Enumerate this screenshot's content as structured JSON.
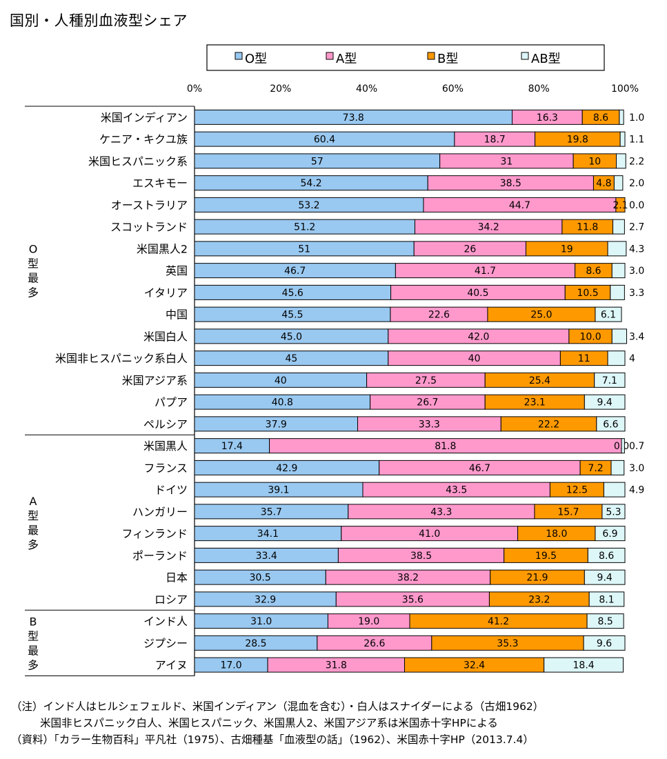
{
  "title": "国別・人種別血液型シェア",
  "chart_data": {
    "type": "bar",
    "orientation": "horizontal",
    "stacked": true,
    "xlim": [
      0,
      100
    ],
    "x_ticks": [
      "0%",
      "20%",
      "40%",
      "60%",
      "80%",
      "100%"
    ],
    "legend_position": "top",
    "series": [
      {
        "name": "O型",
        "color": "#99c8f0"
      },
      {
        "name": "A型",
        "color": "#ff99cc"
      },
      {
        "name": "B型",
        "color": "#ff9900"
      },
      {
        "name": "AB型",
        "color": "#ddf6f8"
      }
    ],
    "groups": [
      {
        "label": [
          "O",
          "型",
          "最",
          "多"
        ],
        "start": 0,
        "end": 14
      },
      {
        "label": [
          "A",
          "型",
          "最",
          "多"
        ],
        "start": 15,
        "end": 22
      },
      {
        "label": [
          "B",
          "型",
          "最",
          "多"
        ],
        "start": 23,
        "end": 25
      }
    ],
    "rows": [
      {
        "category": "米国インディアン",
        "values": [
          73.8,
          16.3,
          8.6,
          1.0
        ],
        "labels": [
          "73.8",
          "16.3",
          "8.6",
          "1.0"
        ],
        "outside": [
          3
        ]
      },
      {
        "category": "ケニア・キクユ族",
        "values": [
          60.4,
          18.7,
          19.8,
          1.1
        ],
        "labels": [
          "60.4",
          "18.7",
          "19.8",
          "1.1"
        ],
        "outside": [
          3
        ]
      },
      {
        "category": "米国ヒスパニック系",
        "values": [
          57,
          31,
          10,
          2.2
        ],
        "labels": [
          "57",
          "31",
          "10",
          "2.2"
        ],
        "outside": [
          3
        ]
      },
      {
        "category": "エスキモー",
        "values": [
          54.2,
          38.5,
          4.8,
          2.0
        ],
        "labels": [
          "54.2",
          "38.5",
          "4.8",
          "2.0"
        ],
        "outside": [
          3
        ]
      },
      {
        "category": "オーストラリア",
        "values": [
          53.2,
          44.7,
          2.1,
          0.0
        ],
        "labels": [
          "53.2",
          "44.7",
          "2.1",
          "0.0"
        ],
        "outside": [
          3
        ]
      },
      {
        "category": "スコットランド",
        "values": [
          51.2,
          34.2,
          11.8,
          2.7
        ],
        "labels": [
          "51.2",
          "34.2",
          "11.8",
          "2.7"
        ],
        "outside": [
          3
        ]
      },
      {
        "category": "米国黒人2",
        "values": [
          51,
          26,
          19,
          4.3
        ],
        "labels": [
          "51",
          "26",
          "19",
          "4.3"
        ],
        "outside": [
          3
        ]
      },
      {
        "category": "英国",
        "values": [
          46.7,
          41.7,
          8.6,
          3.0
        ],
        "labels": [
          "46.7",
          "41.7",
          "8.6",
          "3.0"
        ],
        "outside": [
          3
        ]
      },
      {
        "category": "イタリア",
        "values": [
          45.6,
          40.5,
          10.5,
          3.3
        ],
        "labels": [
          "45.6",
          "40.5",
          "10.5",
          "3.3"
        ],
        "outside": [
          3
        ]
      },
      {
        "category": "中国",
        "values": [
          45.5,
          22.6,
          25.0,
          6.1
        ],
        "labels": [
          "45.5",
          "22.6",
          "25.0",
          "6.1"
        ],
        "outside": []
      },
      {
        "category": "米国白人",
        "values": [
          45.0,
          42.0,
          10.0,
          3.4
        ],
        "labels": [
          "45.0",
          "42.0",
          "10.0",
          "3.4"
        ],
        "outside": [
          3
        ]
      },
      {
        "category": "米国非ヒスパニック系白人",
        "values": [
          45,
          40,
          11,
          4
        ],
        "labels": [
          "45",
          "40",
          "11",
          "4"
        ],
        "outside": [
          3
        ]
      },
      {
        "category": "米国アジア系",
        "values": [
          40,
          27.5,
          25.4,
          7.1
        ],
        "labels": [
          "40",
          "27.5",
          "25.4",
          "7.1"
        ],
        "outside": []
      },
      {
        "category": "パプア",
        "values": [
          40.8,
          26.7,
          23.1,
          9.4
        ],
        "labels": [
          "40.8",
          "26.7",
          "23.1",
          "9.4"
        ],
        "outside": []
      },
      {
        "category": "ペルシア",
        "values": [
          37.9,
          33.3,
          22.2,
          6.6
        ],
        "labels": [
          "37.9",
          "33.3",
          "22.2",
          "6.6"
        ],
        "outside": []
      },
      {
        "category": "米国黒人",
        "values": [
          17.4,
          81.8,
          0.0,
          0.7
        ],
        "labels": [
          "17.4",
          "81.8",
          "0.0",
          "0.7"
        ],
        "outside": [
          3
        ]
      },
      {
        "category": "フランス",
        "values": [
          42.9,
          46.7,
          7.2,
          3.0
        ],
        "labels": [
          "42.9",
          "46.7",
          "7.2",
          "3.0"
        ],
        "outside": [
          3
        ]
      },
      {
        "category": "ドイツ",
        "values": [
          39.1,
          43.5,
          12.5,
          4.9
        ],
        "labels": [
          "39.1",
          "43.5",
          "12.5",
          "4.9"
        ],
        "outside": [
          3
        ]
      },
      {
        "category": "ハンガリー",
        "values": [
          35.7,
          43.3,
          15.7,
          5.3
        ],
        "labels": [
          "35.7",
          "43.3",
          "15.7",
          "5.3"
        ],
        "outside": []
      },
      {
        "category": "フィンランド",
        "values": [
          34.1,
          41.0,
          18.0,
          6.9
        ],
        "labels": [
          "34.1",
          "41.0",
          "18.0",
          "6.9"
        ],
        "outside": []
      },
      {
        "category": "ポーランド",
        "values": [
          33.4,
          38.5,
          19.5,
          8.6
        ],
        "labels": [
          "33.4",
          "38.5",
          "19.5",
          "8.6"
        ],
        "outside": []
      },
      {
        "category": "日本",
        "values": [
          30.5,
          38.2,
          21.9,
          9.4
        ],
        "labels": [
          "30.5",
          "38.2",
          "21.9",
          "9.4"
        ],
        "outside": []
      },
      {
        "category": "ロシア",
        "values": [
          32.9,
          35.6,
          23.2,
          8.1
        ],
        "labels": [
          "32.9",
          "35.6",
          "23.2",
          "8.1"
        ],
        "outside": []
      },
      {
        "category": "インド人",
        "values": [
          31.0,
          19.0,
          41.2,
          8.5
        ],
        "labels": [
          "31.0",
          "19.0",
          "41.2",
          "8.5"
        ],
        "outside": []
      },
      {
        "category": "ジプシー",
        "values": [
          28.5,
          26.6,
          35.3,
          9.6
        ],
        "labels": [
          "28.5",
          "26.6",
          "35.3",
          "9.6"
        ],
        "outside": []
      },
      {
        "category": "アイヌ",
        "values": [
          17.0,
          31.8,
          32.4,
          18.4
        ],
        "labels": [
          "17.0",
          "31.8",
          "32.4",
          "18.4"
        ],
        "outside": []
      }
    ]
  },
  "notes": {
    "line1": "（注）インド人はヒルシェフェルド、米国インディアン（混血を含む）・白人はスナイダーによる（古畑1962）",
    "line2": "米国非ヒスパニック白人、米国ヒスパニック、米国黒人2、米国アジア系は米国赤十字HPによる",
    "line3": "（資料）「カラー生物百科」平凡社（1975）、古畑種基「血液型の話」（1962）、米国赤十字HP（2013.7.4）"
  }
}
